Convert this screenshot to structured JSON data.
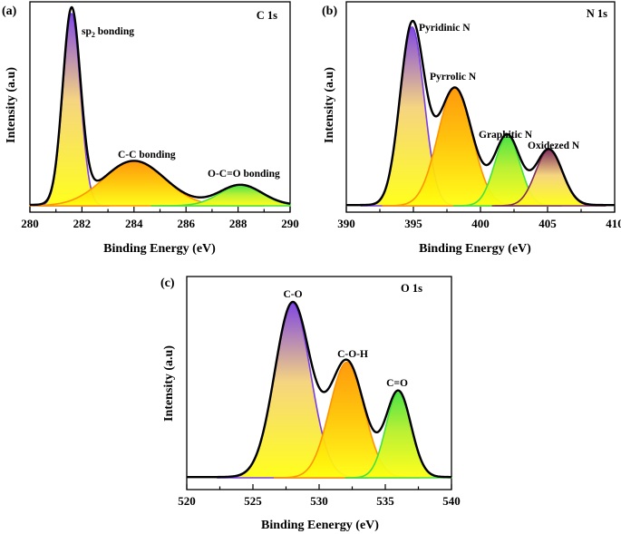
{
  "colors": {
    "envelope": "#000000",
    "purple": "#7a3fe0",
    "orange": "#ff9400",
    "yellow": "#ffff10",
    "green": "#46e13c",
    "maroon": "#7d2b57"
  },
  "chart_data": [
    {
      "type": "area",
      "panel": "(a)",
      "title": "C 1s",
      "xlabel": "Binding Energy (eV)",
      "ylabel": "Intensity (a.u)",
      "xlim": [
        280,
        290
      ],
      "xticks": [
        "280",
        "282",
        "284",
        "286",
        "288",
        "290"
      ],
      "series": [
        {
          "name": "sp2 bonding",
          "label_main": "sp",
          "label_sub": "2",
          "label_rest": " bonding",
          "center": 281.6,
          "width": 0.34,
          "height": 1.0,
          "color": "purple"
        },
        {
          "name": "C-C bonding",
          "center": 284.0,
          "width": 1.18,
          "height": 0.23,
          "color": "orange"
        },
        {
          "name": "O-C=O bonding",
          "center": 288.1,
          "width": 0.82,
          "height": 0.105,
          "color": "green"
        }
      ]
    },
    {
      "type": "area",
      "panel": "(b)",
      "title": "N 1s",
      "xlabel": "Binding Energy (eV)",
      "ylabel": "Intensity (a.u)",
      "xlim": [
        390,
        410
      ],
      "xticks": [
        "390",
        "395",
        "400",
        "405",
        "410"
      ],
      "series": [
        {
          "name": "Pyridinic N",
          "center": 394.9,
          "width": 0.9,
          "height": 0.93,
          "color": "purple"
        },
        {
          "name": "Pyrrolic N",
          "center": 398.1,
          "width": 1.28,
          "height": 0.61,
          "color": "orange"
        },
        {
          "name": "Graphitic N",
          "center": 402.0,
          "width": 0.95,
          "height": 0.36,
          "color": "green"
        },
        {
          "name": "Oxidezed N",
          "center": 405.1,
          "width": 1.0,
          "height": 0.29,
          "color": "maroon"
        }
      ]
    },
    {
      "type": "area",
      "panel": "(c)",
      "title": "O 1s",
      "xlabel": "Binding Eenergy (eV)",
      "ylabel": "Intensity (a.u)",
      "xlim": [
        520,
        540
      ],
      "xticks": [
        "520",
        "525",
        "530",
        "535",
        "540"
      ],
      "series": [
        {
          "name": "C-O",
          "center": 528.0,
          "width": 1.35,
          "height": 0.92,
          "color": "purple"
        },
        {
          "name": "C-O-H",
          "center": 532.1,
          "width": 1.3,
          "height": 0.61,
          "color": "orange"
        },
        {
          "name": "C=O",
          "center": 536.0,
          "width": 0.95,
          "height": 0.45,
          "color": "green"
        }
      ]
    }
  ]
}
